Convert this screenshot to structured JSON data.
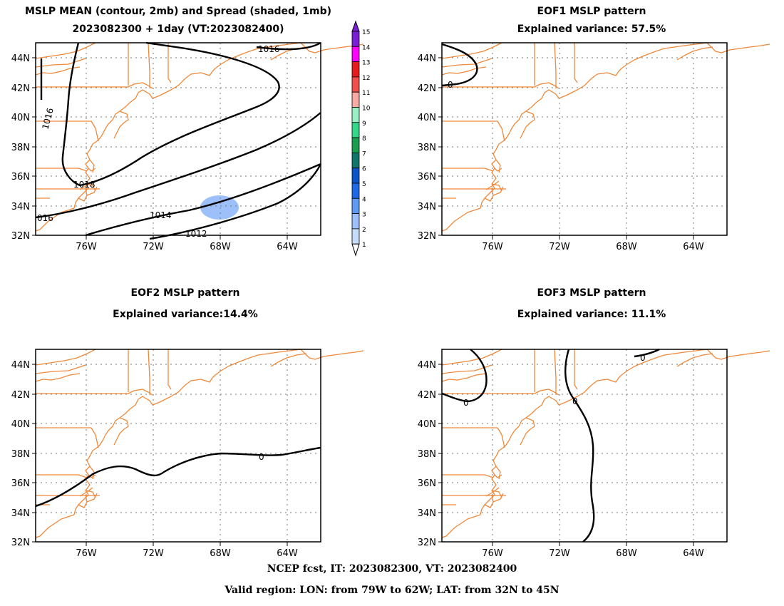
{
  "panel_mean": {
    "title1": "MSLP MEAN (contour, 2mb) and Spread (shaded, 1mb)",
    "title2": "2023082300 + 1day (VT:2023082400)",
    "contour_labels": [
      "1016",
      "1016",
      "1018",
      "016",
      "1014",
      "1012"
    ]
  },
  "panel_eof1": {
    "title1": "EOF1 MSLP pattern",
    "title2": "Explained variance: 57.5%",
    "contour_labels": [
      "0"
    ]
  },
  "panel_eof2": {
    "title1": "EOF2 MSLP pattern",
    "title2": "Explained variance:14.4%",
    "contour_labels": [
      "0"
    ]
  },
  "panel_eof3": {
    "title1": "EOF3 MSLP pattern",
    "title2": "Explained variance: 11.1%",
    "contour_labels": [
      "0",
      "0",
      "0"
    ]
  },
  "axes": {
    "lat_ticks": [
      "44N",
      "42N",
      "40N",
      "38N",
      "36N",
      "34N",
      "32N"
    ],
    "lon_ticks": [
      "76W",
      "72W",
      "68W",
      "64W"
    ]
  },
  "colorbar": {
    "labels": [
      "15",
      "14",
      "13",
      "12",
      "11",
      "10",
      "9",
      "8",
      "7",
      "6",
      "5",
      "4",
      "3",
      "2",
      "1"
    ],
    "colors": [
      "#7b1fd6",
      "#ff00ff",
      "#e81d1d",
      "#f0504a",
      "#f9aaa5",
      "#9af0c5",
      "#35d88a",
      "#1a9e50",
      "#117768",
      "#0a53c9",
      "#1e6ae6",
      "#5f9bf2",
      "#9dc0fa",
      "#c6dcfb",
      "#ffffff"
    ]
  },
  "footer": {
    "line1": "NCEP fcst, IT: 2023082300, VT: 2023082400",
    "line2": "Valid region: LON: from 79W to 62W; LAT: from 32N to 45N"
  },
  "styling": {
    "coast_color": "#f0883a",
    "contour_color": "#000000",
    "spread_fill": "#9dc0fa"
  }
}
